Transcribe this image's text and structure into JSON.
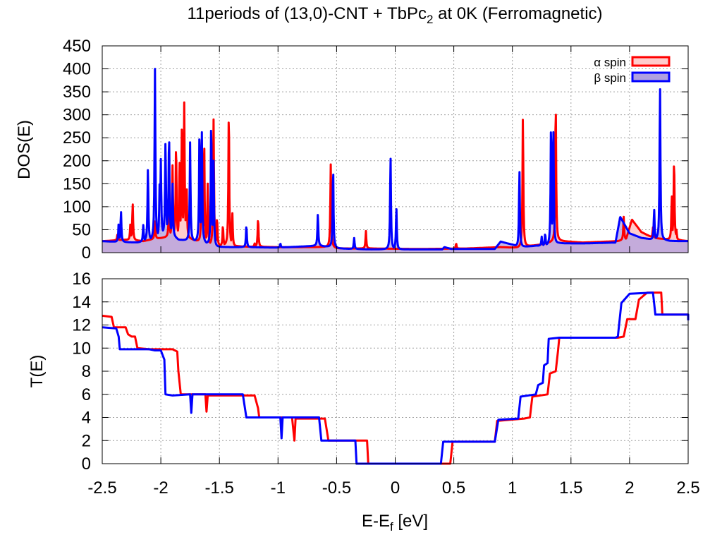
{
  "title": {
    "main": "11periods of (13,0)-CNT + TbPc",
    "sub": "2",
    "tail": " at 0K (Ferromagnetic)"
  },
  "xlabel": {
    "main": "E-E",
    "sub": "f",
    "tail": " [eV]"
  },
  "colors": {
    "alpha": "#ff0000",
    "beta": "#0000ff",
    "alpha_fill": "#ffcccc",
    "beta_fill": "#b0a0e0"
  },
  "chart_data": [
    {
      "type": "line",
      "ylabel": "DOS(E)",
      "xlim": [
        -2.5,
        2.5
      ],
      "ylim": [
        0,
        450
      ],
      "xticks": [
        -2.5,
        -2,
        -1.5,
        -1,
        -0.5,
        0,
        0.5,
        1,
        1.5,
        2,
        2.5
      ],
      "yticks": [
        0,
        50,
        100,
        150,
        200,
        250,
        300,
        350,
        400,
        450
      ],
      "xtick_labels_shown": false,
      "grid": true,
      "legend_position": "top-right",
      "legend": [
        "α spin",
        "β spin"
      ],
      "series": [
        {
          "name": "α spin",
          "color": "#ff0000",
          "filled": true,
          "baseline": [
            [
              -2.5,
              25
            ],
            [
              -2.3,
              28
            ],
            [
              -2.15,
              25
            ],
            [
              -2.05,
              30
            ],
            [
              -1.9,
              35
            ],
            [
              -1.75,
              30
            ],
            [
              -1.6,
              16
            ],
            [
              -1.3,
              13
            ],
            [
              -1.0,
              12
            ],
            [
              -0.7,
              12
            ],
            [
              -0.56,
              12
            ],
            [
              -0.5,
              9
            ],
            [
              -0.2,
              9
            ],
            [
              0.2,
              8
            ],
            [
              0.6,
              9
            ],
            [
              0.9,
              12
            ],
            [
              1.05,
              10
            ],
            [
              1.25,
              18
            ],
            [
              1.4,
              25
            ],
            [
              1.6,
              22
            ],
            [
              1.9,
              25
            ],
            [
              1.97,
              28
            ],
            [
              2.02,
              72
            ],
            [
              2.1,
              45
            ],
            [
              2.2,
              32
            ],
            [
              2.35,
              28
            ],
            [
              2.5,
              25
            ]
          ],
          "peaks": [
            [
              -2.37,
              40
            ],
            [
              -2.26,
              62
            ],
            [
              -2.24,
              107
            ],
            [
              -2.05,
              68
            ],
            [
              -1.93,
              120
            ],
            [
              -1.9,
              190
            ],
            [
              -1.87,
              240
            ],
            [
              -1.84,
              200
            ],
            [
              -1.82,
              295
            ],
            [
              -1.8,
              327
            ],
            [
              -1.78,
              150
            ],
            [
              -1.65,
              245
            ],
            [
              -1.63,
              250
            ],
            [
              -1.6,
              150
            ],
            [
              -1.55,
              290
            ],
            [
              -1.52,
              77
            ],
            [
              -1.47,
              60
            ],
            [
              -1.42,
              314
            ],
            [
              -1.39,
              88
            ],
            [
              -1.2,
              20
            ],
            [
              -1.17,
              75
            ],
            [
              -0.55,
              192
            ],
            [
              -0.25,
              47
            ],
            [
              0.52,
              20
            ],
            [
              1.09,
              297
            ],
            [
              1.37,
              332
            ],
            [
              1.95,
              78
            ],
            [
              2.2,
              55
            ],
            [
              2.36,
              125
            ],
            [
              2.38,
              206
            ],
            [
              2.4,
              50
            ]
          ]
        },
        {
          "name": "β spin",
          "color": "#0000ff",
          "filled": true,
          "baseline": [
            [
              -2.5,
              25
            ],
            [
              -2.35,
              23
            ],
            [
              -2.2,
              22
            ],
            [
              -2.05,
              28
            ],
            [
              -1.95,
              45
            ],
            [
              -1.85,
              28
            ],
            [
              -1.75,
              25
            ],
            [
              -1.65,
              24
            ],
            [
              -1.55,
              12
            ],
            [
              -1.3,
              12
            ],
            [
              -1.0,
              11
            ],
            [
              -0.65,
              15
            ],
            [
              -0.53,
              11
            ],
            [
              -0.5,
              9
            ],
            [
              -0.2,
              7
            ],
            [
              0.0,
              7
            ],
            [
              0.4,
              7
            ],
            [
              0.42,
              12
            ],
            [
              0.48,
              8
            ],
            [
              0.85,
              8
            ],
            [
              0.9,
              24
            ],
            [
              1.0,
              17
            ],
            [
              1.05,
              11
            ],
            [
              1.2,
              15
            ],
            [
              1.3,
              15
            ],
            [
              1.4,
              20
            ],
            [
              1.6,
              20
            ],
            [
              1.88,
              22
            ],
            [
              1.92,
              78
            ],
            [
              2.0,
              42
            ],
            [
              2.1,
              32
            ],
            [
              2.2,
              28
            ],
            [
              2.35,
              25
            ],
            [
              2.5,
              25
            ]
          ],
          "peaks": [
            [
              -2.36,
              62
            ],
            [
              -2.34,
              90
            ],
            [
              -2.15,
              60
            ],
            [
              -2.11,
              184
            ],
            [
              -2.05,
              400
            ],
            [
              -2.01,
              152
            ],
            [
              -2.0,
              204
            ],
            [
              -1.96,
              242
            ],
            [
              -1.93,
              263
            ],
            [
              -1.9,
              150
            ],
            [
              -1.75,
              240
            ],
            [
              -1.67,
              272
            ],
            [
              -1.65,
              262
            ],
            [
              -1.57,
              294
            ],
            [
              -1.55,
              200
            ],
            [
              -1.27,
              60
            ],
            [
              -0.98,
              20
            ],
            [
              -0.66,
              84
            ],
            [
              -0.53,
              188
            ],
            [
              -0.35,
              32
            ],
            [
              -0.04,
              210
            ],
            [
              0.01,
              97
            ],
            [
              1.06,
              180
            ],
            [
              1.25,
              35
            ],
            [
              1.28,
              42
            ],
            [
              1.33,
              290
            ],
            [
              1.35,
              262
            ],
            [
              2.21,
              95
            ],
            [
              2.26,
              365
            ]
          ]
        }
      ]
    },
    {
      "type": "line",
      "ylabel": "T(E)",
      "xlabel": "E-Ef [eV]",
      "xlim": [
        -2.5,
        2.5
      ],
      "ylim": [
        0,
        16
      ],
      "xticks": [
        -2.5,
        -2,
        -1.5,
        -1,
        -0.5,
        0,
        0.5,
        1,
        1.5,
        2,
        2.5
      ],
      "xtick_labels": [
        "-2.5",
        "-2",
        "-1.5",
        "-1",
        "-0.5",
        "0",
        "0.5",
        "1",
        "1.5",
        "2",
        "2.5"
      ],
      "yticks": [
        0,
        2,
        4,
        6,
        8,
        10,
        12,
        14,
        16
      ],
      "grid": true,
      "series": [
        {
          "name": "α spin",
          "color": "#ff0000",
          "points": [
            [
              -2.5,
              12.8
            ],
            [
              -2.42,
              12.7
            ],
            [
              -2.4,
              11.8
            ],
            [
              -2.3,
              11.8
            ],
            [
              -2.28,
              11.2
            ],
            [
              -2.25,
              11.0
            ],
            [
              -2.22,
              11.0
            ],
            [
              -2.2,
              10.0
            ],
            [
              -2.1,
              9.9
            ],
            [
              -1.9,
              9.9
            ],
            [
              -1.86,
              9.7
            ],
            [
              -1.85,
              8.0
            ],
            [
              -1.83,
              6.0
            ],
            [
              -1.62,
              6.0
            ],
            [
              -1.61,
              4.5
            ],
            [
              -1.6,
              5.9
            ],
            [
              -1.3,
              5.9
            ],
            [
              -1.2,
              5.9
            ],
            [
              -1.17,
              4.8
            ],
            [
              -1.16,
              4.0
            ],
            [
              -0.88,
              4.0
            ],
            [
              -0.86,
              2.0
            ],
            [
              -0.85,
              3.9
            ],
            [
              -0.6,
              3.9
            ],
            [
              -0.57,
              2.0
            ],
            [
              -0.24,
              2.0
            ],
            [
              -0.23,
              0.0
            ],
            [
              0.47,
              0.0
            ],
            [
              0.49,
              1.9
            ],
            [
              0.85,
              1.9
            ],
            [
              0.87,
              3.7
            ],
            [
              1.1,
              3.9
            ],
            [
              1.15,
              4.0
            ],
            [
              1.17,
              5.8
            ],
            [
              1.3,
              6.0
            ],
            [
              1.32,
              7.8
            ],
            [
              1.37,
              8.0
            ],
            [
              1.39,
              9.8
            ],
            [
              1.4,
              10.9
            ],
            [
              1.9,
              10.9
            ],
            [
              1.95,
              11.0
            ],
            [
              1.98,
              12.5
            ],
            [
              2.05,
              12.5
            ],
            [
              2.08,
              14.2
            ],
            [
              2.15,
              14.8
            ],
            [
              2.27,
              14.8
            ],
            [
              2.28,
              12.9
            ],
            [
              2.5,
              12.9
            ]
          ]
        },
        {
          "name": "β spin",
          "color": "#0000ff",
          "points": [
            [
              -2.5,
              11.8
            ],
            [
              -2.38,
              11.7
            ],
            [
              -2.36,
              11.0
            ],
            [
              -2.35,
              9.9
            ],
            [
              -2.1,
              9.9
            ],
            [
              -2.05,
              9.8
            ],
            [
              -2.0,
              9.8
            ],
            [
              -1.97,
              9.0
            ],
            [
              -1.96,
              6.0
            ],
            [
              -1.9,
              5.9
            ],
            [
              -1.75,
              6.0
            ],
            [
              -1.74,
              4.4
            ],
            [
              -1.73,
              6.0
            ],
            [
              -1.3,
              6.0
            ],
            [
              -1.27,
              4.0
            ],
            [
              -0.98,
              4.0
            ],
            [
              -0.97,
              2.2
            ],
            [
              -0.96,
              4.0
            ],
            [
              -0.65,
              4.0
            ],
            [
              -0.63,
              2.0
            ],
            [
              -0.34,
              2.0
            ],
            [
              -0.33,
              0.0
            ],
            [
              0.39,
              0.0
            ],
            [
              0.41,
              1.9
            ],
            [
              0.85,
              1.9
            ],
            [
              0.88,
              3.8
            ],
            [
              1.05,
              3.9
            ],
            [
              1.07,
              5.8
            ],
            [
              1.2,
              6.0
            ],
            [
              1.22,
              6.8
            ],
            [
              1.26,
              7.0
            ],
            [
              1.27,
              8.5
            ],
            [
              1.3,
              8.7
            ],
            [
              1.31,
              10.8
            ],
            [
              1.4,
              10.9
            ],
            [
              1.88,
              10.9
            ],
            [
              1.9,
              11.0
            ],
            [
              1.93,
              13.9
            ],
            [
              2.0,
              14.7
            ],
            [
              2.2,
              14.8
            ],
            [
              2.22,
              12.9
            ],
            [
              2.5,
              12.9
            ],
            [
              2.5,
              12.4
            ]
          ]
        }
      ]
    }
  ]
}
